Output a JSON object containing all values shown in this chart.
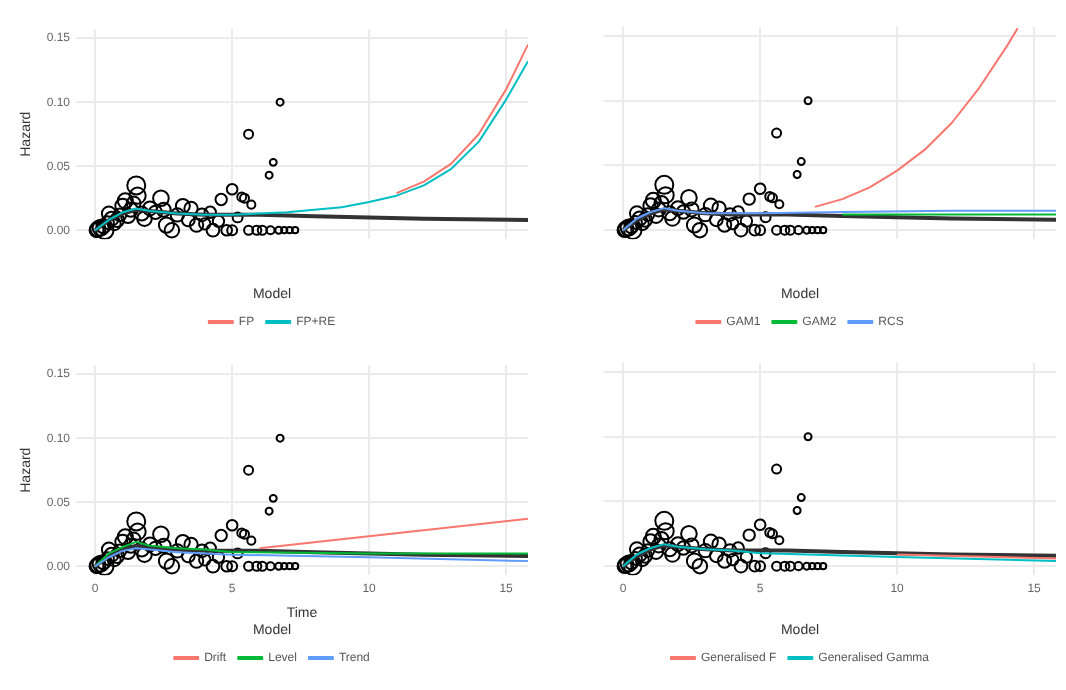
{
  "chart_data": [
    {
      "type": "line",
      "ylabel": "Hazard",
      "legend_title": "Model",
      "legend": "bottom",
      "grid": true,
      "tick_labels": "y",
      "xlim": [
        -0.7,
        15.8
      ],
      "xticks": [
        {
          "value": 0,
          "label": null
        },
        {
          "value": 5,
          "label": null
        },
        {
          "value": 10,
          "label": null
        },
        {
          "value": 15,
          "label": null
        }
      ],
      "ylim": [
        -0.007,
        0.157
      ],
      "yticks": [
        {
          "value": 0,
          "label": "0.00"
        },
        {
          "value": 0.05,
          "label": "0.05"
        },
        {
          "value": 0.1,
          "label": "0.10"
        },
        {
          "value": 0.15,
          "label": "0.15"
        }
      ],
      "series": [
        {
          "color": "#333333",
          "x": [
            0,
            0.5,
            1,
            1.5,
            2,
            3,
            4,
            5,
            6,
            8,
            10,
            12,
            15.8
          ],
          "values": [
            0,
            0.008,
            0.013,
            0.016,
            0.015,
            0.013,
            0.012,
            0.012,
            0.012,
            0.011,
            0.01,
            0.009,
            0.008
          ]
        },
        {
          "name": "FP",
          "color": "#f8766d",
          "x": [
            11,
            12,
            13,
            14,
            15,
            15.8
          ],
          "values": [
            0.029,
            0.038,
            0.052,
            0.075,
            0.11,
            0.145
          ]
        },
        {
          "name": "FP+RE",
          "color": "#00bfc4",
          "x": [
            0,
            0.5,
            1,
            1.5,
            2,
            3,
            4,
            5,
            6,
            7,
            8,
            9,
            10,
            11,
            12,
            13,
            14,
            15,
            15.8
          ],
          "values": [
            0,
            0.008,
            0.014,
            0.017,
            0.015,
            0.013,
            0.012,
            0.012,
            0.013,
            0.014,
            0.016,
            0.018,
            0.022,
            0.027,
            0.035,
            0.048,
            0.069,
            0.102,
            0.132
          ]
        },
        {
          "type": "bubble",
          "color": "#000000",
          "x": [
            0.05,
            0.1,
            0.2,
            0.3,
            0.35,
            0.45,
            0.5,
            0.6,
            0.7,
            0.8,
            0.9,
            1.0,
            1.1,
            1.2,
            1.3,
            1.4,
            1.5,
            1.55,
            1.7,
            1.8,
            2.0,
            2.2,
            2.4,
            2.5,
            2.6,
            2.8,
            3.0,
            3.2,
            3.4,
            3.5,
            3.7,
            3.9,
            4.0,
            4.2,
            4.3,
            4.5,
            4.6,
            4.8,
            5.0,
            5.0,
            5.2,
            5.35,
            5.45,
            5.6,
            5.6,
            5.7,
            5.9,
            6.1,
            6.35,
            6.4,
            6.5,
            6.7,
            6.75,
            6.9,
            7.1,
            7.3
          ],
          "values": [
            0,
            0.001,
            0.002,
            0.003,
            0,
            0.006,
            0.013,
            0.009,
            0.005,
            0.008,
            0.012,
            0.019,
            0.023,
            0.011,
            0.016,
            0.021,
            0.035,
            0.027,
            0.013,
            0.009,
            0.017,
            0.014,
            0.025,
            0.016,
            0.004,
            0,
            0.012,
            0.019,
            0.008,
            0.017,
            0.004,
            0.012,
            0.005,
            0.014,
            0,
            0.007,
            0.024,
            0,
            0.032,
            0,
            0.01,
            0.026,
            0.025,
            0.075,
            0,
            0.02,
            0,
            0,
            0.043,
            0,
            0.053,
            0,
            0.1,
            0,
            0,
            0
          ],
          "sizes": [
            0.6,
            0.7,
            0.8,
            0.6,
            0.95,
            0.5,
            0.6,
            0.6,
            0.5,
            0.6,
            0.5,
            0.65,
            0.7,
            0.6,
            0.6,
            0.6,
            1,
            0.8,
            0.6,
            0.65,
            0.6,
            0.55,
            0.75,
            0.6,
            0.7,
            0.65,
            0.55,
            0.6,
            0.5,
            0.55,
            0.55,
            0.5,
            0.4,
            0.4,
            0.5,
            0.4,
            0.4,
            0.35,
            0.35,
            0.3,
            0.3,
            0.25,
            0.25,
            0.25,
            0.25,
            0.2,
            0.25,
            0.25,
            0.15,
            0.2,
            0.15,
            0.15,
            0.15,
            0.12,
            0.12,
            0.12
          ]
        }
      ]
    },
    {
      "type": "line",
      "legend_title": "Model",
      "legend": "bottom",
      "grid": true,
      "tick_labels": false,
      "xlim": [
        -0.7,
        15.8
      ],
      "xticks": [
        {
          "value": 0,
          "label": null
        },
        {
          "value": 5,
          "label": null
        },
        {
          "value": 10,
          "label": null
        },
        {
          "value": 15,
          "label": null
        }
      ],
      "ylim": [
        -0.007,
        0.157
      ],
      "yticks": [
        {
          "value": 0,
          "label": null
        },
        {
          "value": 0.05,
          "label": null
        },
        {
          "value": 0.1,
          "label": null
        },
        {
          "value": 0.15,
          "label": null
        }
      ],
      "series": [
        {
          "color": "#333333",
          "x": [
            0,
            0.5,
            1,
            1.5,
            2,
            3,
            4,
            5,
            6,
            8,
            10,
            12,
            15.8
          ],
          "values": [
            0,
            0.008,
            0.013,
            0.016,
            0.015,
            0.013,
            0.012,
            0.012,
            0.012,
            0.011,
            0.01,
            0.009,
            0.008
          ]
        },
        {
          "name": "GAM1",
          "color": "#f8766d",
          "x": [
            7,
            8,
            9,
            10,
            11,
            12,
            13,
            14,
            14.4
          ],
          "values": [
            0.018,
            0.024,
            0.033,
            0.046,
            0.062,
            0.083,
            0.11,
            0.142,
            0.156
          ]
        },
        {
          "name": "GAM2",
          "color": "#00ba38",
          "x": [
            8,
            12,
            15.8
          ],
          "values": [
            0.012,
            0.012,
            0.012
          ]
        },
        {
          "name": "RCS",
          "color": "#619cff",
          "x": [
            0,
            0.5,
            1,
            1.5,
            2,
            3,
            4,
            5,
            8,
            12,
            15.8
          ],
          "values": [
            0,
            0.009,
            0.014,
            0.017,
            0.015,
            0.013,
            0.013,
            0.013,
            0.014,
            0.015,
            0.015
          ]
        },
        {
          "type": "bubble",
          "color": "#000000",
          "x": [
            0.05,
            0.1,
            0.2,
            0.3,
            0.35,
            0.45,
            0.5,
            0.6,
            0.7,
            0.8,
            0.9,
            1.0,
            1.1,
            1.2,
            1.3,
            1.4,
            1.5,
            1.55,
            1.7,
            1.8,
            2.0,
            2.2,
            2.4,
            2.5,
            2.6,
            2.8,
            3.0,
            3.2,
            3.4,
            3.5,
            3.7,
            3.9,
            4.0,
            4.2,
            4.3,
            4.5,
            4.6,
            4.8,
            5.0,
            5.0,
            5.2,
            5.35,
            5.45,
            5.6,
            5.6,
            5.7,
            5.9,
            6.1,
            6.35,
            6.4,
            6.5,
            6.7,
            6.75,
            6.9,
            7.1,
            7.3
          ],
          "values": [
            0,
            0.001,
            0.002,
            0.003,
            0,
            0.006,
            0.013,
            0.009,
            0.005,
            0.008,
            0.012,
            0.019,
            0.023,
            0.011,
            0.016,
            0.021,
            0.035,
            0.027,
            0.013,
            0.009,
            0.017,
            0.014,
            0.025,
            0.016,
            0.004,
            0,
            0.012,
            0.019,
            0.008,
            0.017,
            0.004,
            0.012,
            0.005,
            0.014,
            0,
            0.007,
            0.024,
            0,
            0.032,
            0,
            0.01,
            0.026,
            0.025,
            0.075,
            0,
            0.02,
            0,
            0,
            0.043,
            0,
            0.053,
            0,
            0.1,
            0,
            0,
            0
          ],
          "sizes": [
            0.6,
            0.7,
            0.8,
            0.6,
            0.95,
            0.5,
            0.6,
            0.6,
            0.5,
            0.6,
            0.5,
            0.65,
            0.7,
            0.6,
            0.6,
            0.6,
            1,
            0.8,
            0.6,
            0.65,
            0.6,
            0.55,
            0.75,
            0.6,
            0.7,
            0.65,
            0.55,
            0.6,
            0.5,
            0.55,
            0.55,
            0.5,
            0.4,
            0.4,
            0.5,
            0.4,
            0.4,
            0.35,
            0.35,
            0.3,
            0.3,
            0.25,
            0.25,
            0.25,
            0.25,
            0.2,
            0.25,
            0.25,
            0.15,
            0.2,
            0.15,
            0.15,
            0.15,
            0.12,
            0.12,
            0.12
          ]
        }
      ]
    },
    {
      "type": "line",
      "xlabel": "Time",
      "ylabel": "Hazard",
      "legend_title": "Model",
      "legend": "bottom",
      "grid": true,
      "xlim": [
        -0.7,
        15.8
      ],
      "xticks": [
        0,
        5,
        10,
        15
      ],
      "ylim": [
        -0.007,
        0.157
      ],
      "yticks": [
        {
          "value": 0,
          "label": "0.00"
        },
        {
          "value": 0.05,
          "label": "0.05"
        },
        {
          "value": 0.1,
          "label": "0.10"
        },
        {
          "value": 0.15,
          "label": "0.15"
        }
      ],
      "series": [
        {
          "color": "#333333",
          "x": [
            0,
            0.5,
            1,
            1.5,
            2,
            3,
            4,
            5,
            6,
            8,
            10,
            12,
            15.8
          ],
          "values": [
            0,
            0.008,
            0.013,
            0.016,
            0.015,
            0.013,
            0.012,
            0.012,
            0.012,
            0.011,
            0.01,
            0.009,
            0.008
          ]
        },
        {
          "name": "Drift",
          "color": "#f8766d",
          "x": [
            6,
            15.8
          ],
          "values": [
            0.014,
            0.037
          ]
        },
        {
          "name": "Level",
          "color": "#00ba38",
          "x": [
            0,
            0.5,
            1,
            1.5,
            2,
            3,
            4,
            5,
            10,
            15.8
          ],
          "values": [
            0,
            0.01,
            0.015,
            0.019,
            0.016,
            0.014,
            0.013,
            0.011,
            0.01,
            0.01
          ]
        },
        {
          "name": "Trend",
          "color": "#619cff",
          "x": [
            0,
            0.5,
            1,
            1.5,
            2,
            3,
            4,
            5,
            10,
            15.8
          ],
          "values": [
            0,
            0.007,
            0.012,
            0.014,
            0.013,
            0.011,
            0.01,
            0.009,
            0.007,
            0.004
          ]
        },
        {
          "type": "bubble",
          "color": "#000000",
          "x": [
            0.05,
            0.1,
            0.2,
            0.3,
            0.35,
            0.45,
            0.5,
            0.6,
            0.7,
            0.8,
            0.9,
            1.0,
            1.1,
            1.2,
            1.3,
            1.4,
            1.5,
            1.55,
            1.7,
            1.8,
            2.0,
            2.2,
            2.4,
            2.5,
            2.6,
            2.8,
            3.0,
            3.2,
            3.4,
            3.5,
            3.7,
            3.9,
            4.0,
            4.2,
            4.3,
            4.5,
            4.6,
            4.8,
            5.0,
            5.0,
            5.2,
            5.35,
            5.45,
            5.6,
            5.6,
            5.7,
            5.9,
            6.1,
            6.35,
            6.4,
            6.5,
            6.7,
            6.75,
            6.9,
            7.1,
            7.3
          ],
          "values": [
            0,
            0.001,
            0.002,
            0.003,
            0,
            0.006,
            0.013,
            0.009,
            0.005,
            0.008,
            0.012,
            0.019,
            0.023,
            0.011,
            0.016,
            0.021,
            0.035,
            0.027,
            0.013,
            0.009,
            0.017,
            0.014,
            0.025,
            0.016,
            0.004,
            0,
            0.012,
            0.019,
            0.008,
            0.017,
            0.004,
            0.012,
            0.005,
            0.014,
            0,
            0.007,
            0.024,
            0,
            0.032,
            0,
            0.01,
            0.026,
            0.025,
            0.075,
            0,
            0.02,
            0,
            0,
            0.043,
            0,
            0.053,
            0,
            0.1,
            0,
            0,
            0
          ],
          "sizes": [
            0.6,
            0.7,
            0.8,
            0.6,
            0.95,
            0.5,
            0.6,
            0.6,
            0.5,
            0.6,
            0.5,
            0.65,
            0.7,
            0.6,
            0.6,
            0.6,
            1,
            0.8,
            0.6,
            0.65,
            0.6,
            0.55,
            0.75,
            0.6,
            0.7,
            0.65,
            0.55,
            0.6,
            0.5,
            0.55,
            0.55,
            0.5,
            0.4,
            0.4,
            0.5,
            0.4,
            0.4,
            0.35,
            0.35,
            0.3,
            0.3,
            0.25,
            0.25,
            0.25,
            0.25,
            0.2,
            0.25,
            0.25,
            0.15,
            0.2,
            0.15,
            0.15,
            0.15,
            0.12,
            0.12,
            0.12
          ]
        }
      ]
    },
    {
      "type": "line",
      "legend_title": "Model",
      "legend": "bottom",
      "grid": true,
      "tick_labels": "x",
      "xlim": [
        -0.7,
        15.8
      ],
      "xticks": [
        0,
        5,
        10,
        15
      ],
      "ylim": [
        -0.007,
        0.157
      ],
      "yticks": [
        {
          "value": 0,
          "label": null
        },
        {
          "value": 0.05,
          "label": null
        },
        {
          "value": 0.1,
          "label": null
        },
        {
          "value": 0.15,
          "label": null
        }
      ],
      "series": [
        {
          "color": "#333333",
          "x": [
            0,
            0.5,
            1,
            1.5,
            2,
            3,
            4,
            5,
            6,
            8,
            10,
            12,
            15.8
          ],
          "values": [
            0,
            0.008,
            0.013,
            0.016,
            0.015,
            0.013,
            0.012,
            0.012,
            0.012,
            0.011,
            0.01,
            0.009,
            0.008
          ]
        },
        {
          "name": "Generalised F",
          "color": "#f8766d",
          "x": [
            10,
            15.8
          ],
          "values": [
            0.009,
            0.006
          ]
        },
        {
          "name": "Generalised Gamma",
          "color": "#00bfc4",
          "x": [
            0,
            0.5,
            1,
            1.5,
            2,
            3,
            4,
            5,
            10,
            15.8
          ],
          "values": [
            0,
            0.009,
            0.014,
            0.017,
            0.015,
            0.013,
            0.012,
            0.01,
            0.007,
            0.004
          ]
        },
        {
          "type": "bubble",
          "color": "#000000",
          "x": [
            0.05,
            0.1,
            0.2,
            0.3,
            0.35,
            0.45,
            0.5,
            0.6,
            0.7,
            0.8,
            0.9,
            1.0,
            1.1,
            1.2,
            1.3,
            1.4,
            1.5,
            1.55,
            1.7,
            1.8,
            2.0,
            2.2,
            2.4,
            2.5,
            2.6,
            2.8,
            3.0,
            3.2,
            3.4,
            3.5,
            3.7,
            3.9,
            4.0,
            4.2,
            4.3,
            4.5,
            4.6,
            4.8,
            5.0,
            5.0,
            5.2,
            5.35,
            5.45,
            5.6,
            5.6,
            5.7,
            5.9,
            6.1,
            6.35,
            6.4,
            6.5,
            6.7,
            6.75,
            6.9,
            7.1,
            7.3
          ],
          "values": [
            0,
            0.001,
            0.002,
            0.003,
            0,
            0.006,
            0.013,
            0.009,
            0.005,
            0.008,
            0.012,
            0.019,
            0.023,
            0.011,
            0.016,
            0.021,
            0.035,
            0.027,
            0.013,
            0.009,
            0.017,
            0.014,
            0.025,
            0.016,
            0.004,
            0,
            0.012,
            0.019,
            0.008,
            0.017,
            0.004,
            0.012,
            0.005,
            0.014,
            0,
            0.007,
            0.024,
            0,
            0.032,
            0,
            0.01,
            0.026,
            0.025,
            0.075,
            0,
            0.02,
            0,
            0,
            0.043,
            0,
            0.053,
            0,
            0.1,
            0,
            0,
            0
          ],
          "sizes": [
            0.6,
            0.7,
            0.8,
            0.6,
            0.95,
            0.5,
            0.6,
            0.6,
            0.5,
            0.6,
            0.5,
            0.65,
            0.7,
            0.6,
            0.6,
            0.6,
            1,
            0.8,
            0.6,
            0.65,
            0.6,
            0.55,
            0.75,
            0.6,
            0.7,
            0.65,
            0.55,
            0.6,
            0.5,
            0.55,
            0.55,
            0.5,
            0.4,
            0.4,
            0.5,
            0.4,
            0.4,
            0.35,
            0.35,
            0.3,
            0.3,
            0.25,
            0.25,
            0.25,
            0.25,
            0.2,
            0.25,
            0.25,
            0.15,
            0.2,
            0.15,
            0.15,
            0.15,
            0.12,
            0.12,
            0.12
          ]
        }
      ]
    }
  ]
}
